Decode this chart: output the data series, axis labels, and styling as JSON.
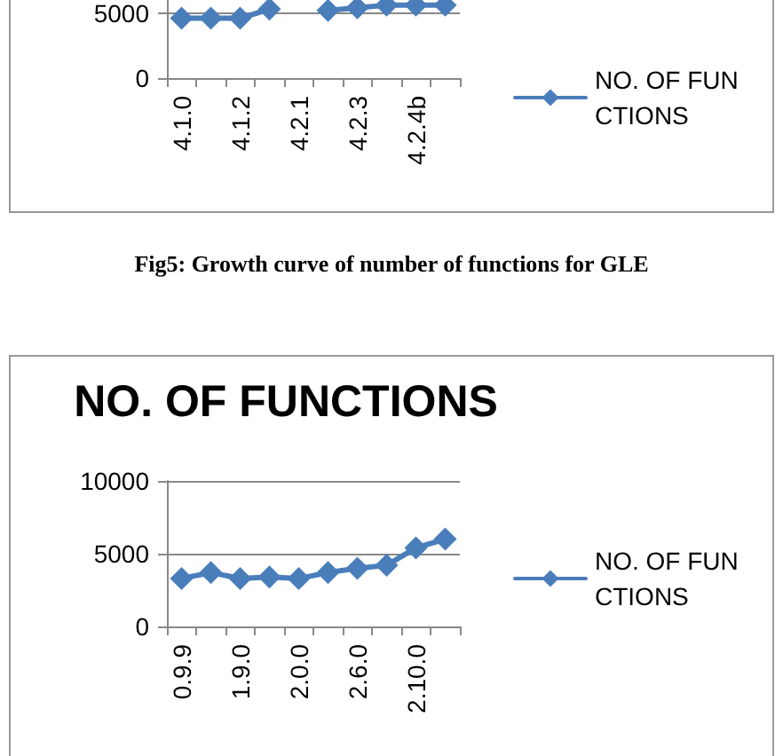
{
  "chart_data": [
    {
      "type": "line",
      "categories": [
        "4.1.0",
        null,
        "4.1.2",
        null,
        "4.2.1",
        null,
        "4.2.3",
        null,
        "4.2.4b",
        null
      ],
      "series": [
        {
          "name": "NO. OF FUNCTIONS",
          "color": "#4a7ebb",
          "values": [
            4600,
            4600,
            4600,
            5300,
            null,
            5200,
            5400,
            5600,
            5600,
            5600
          ]
        }
      ],
      "ylim": [
        0,
        6000
      ],
      "yticks": [
        0,
        5000
      ],
      "grid": "y",
      "legend": "right",
      "marker": "diamond",
      "annotations": [
        "Fig5: Growth curve of number of functions for GLE"
      ]
    },
    {
      "type": "line",
      "title": "NO. OF FUNCTIONS",
      "categories": [
        "0.9.9",
        null,
        "1.9.0",
        null,
        "2.0.0",
        null,
        "2.6.0",
        null,
        "2.10.0",
        null
      ],
      "series": [
        {
          "name": "NO. OF FUNCTIONS",
          "color": "#4a7ebb",
          "values": [
            3300,
            3700,
            3300,
            3400,
            3300,
            3700,
            4000,
            4200,
            5400,
            6000
          ]
        }
      ],
      "ylim": [
        0,
        10000
      ],
      "yticks": [
        0,
        5000,
        10000
      ],
      "grid": "y",
      "legend": "right",
      "marker": "diamond"
    }
  ]
}
